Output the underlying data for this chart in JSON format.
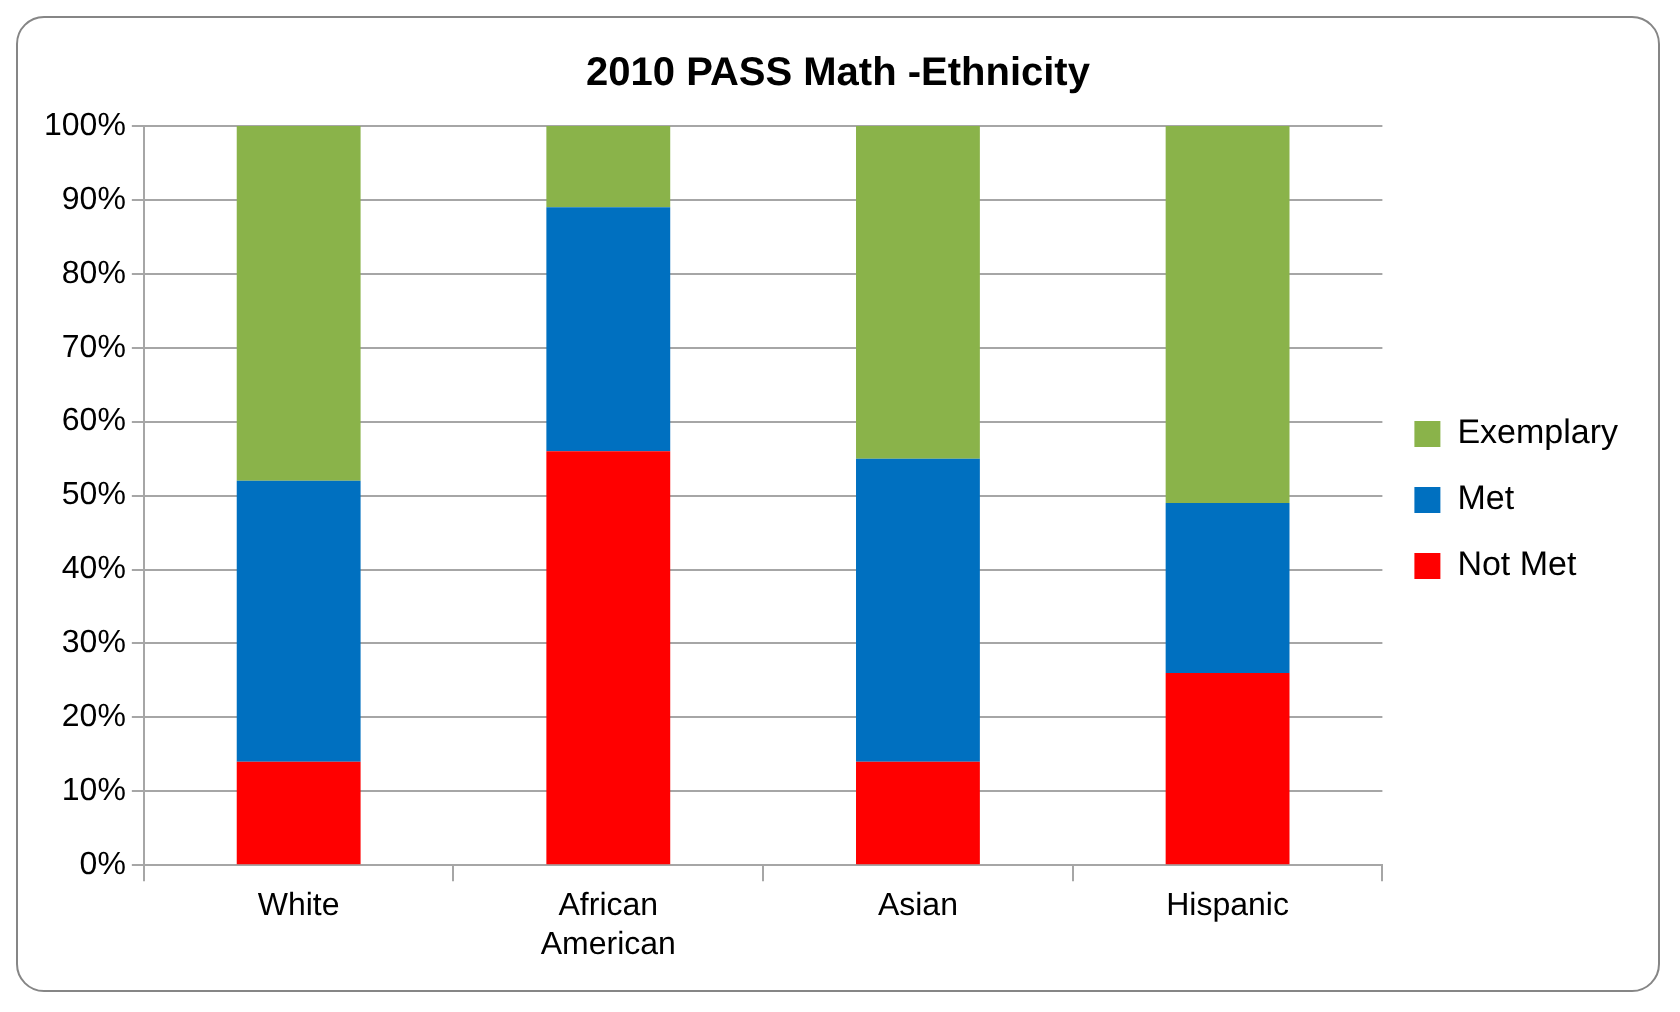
{
  "chart_data": {
    "type": "bar",
    "title": "2010 PASS Math -Ethnicity",
    "categories": [
      "White",
      "African American",
      "Asian",
      "Hispanic"
    ],
    "series": [
      {
        "name": "Not Met",
        "color": "#ff0000",
        "values": [
          14,
          56,
          14,
          26
        ]
      },
      {
        "name": "Met",
        "color": "#0070c0",
        "values": [
          38,
          33,
          41,
          23
        ]
      },
      {
        "name": "Exemplary",
        "color": "#8ab34a",
        "values": [
          48,
          11,
          45,
          51
        ]
      }
    ],
    "stacked": true,
    "ylim": [
      0,
      100
    ],
    "yticks": [
      {
        "value": 0,
        "label": "0%"
      },
      {
        "value": 10,
        "label": "10%"
      },
      {
        "value": 20,
        "label": "20%"
      },
      {
        "value": 30,
        "label": "30%"
      },
      {
        "value": 40,
        "label": "40%"
      },
      {
        "value": 50,
        "label": "50%"
      },
      {
        "value": 60,
        "label": "60%"
      },
      {
        "value": 70,
        "label": "70%"
      },
      {
        "value": 80,
        "label": "80%"
      },
      {
        "value": 90,
        "label": "90%"
      },
      {
        "value": 100,
        "label": "100%"
      }
    ],
    "grid": "y",
    "legend": "right"
  }
}
